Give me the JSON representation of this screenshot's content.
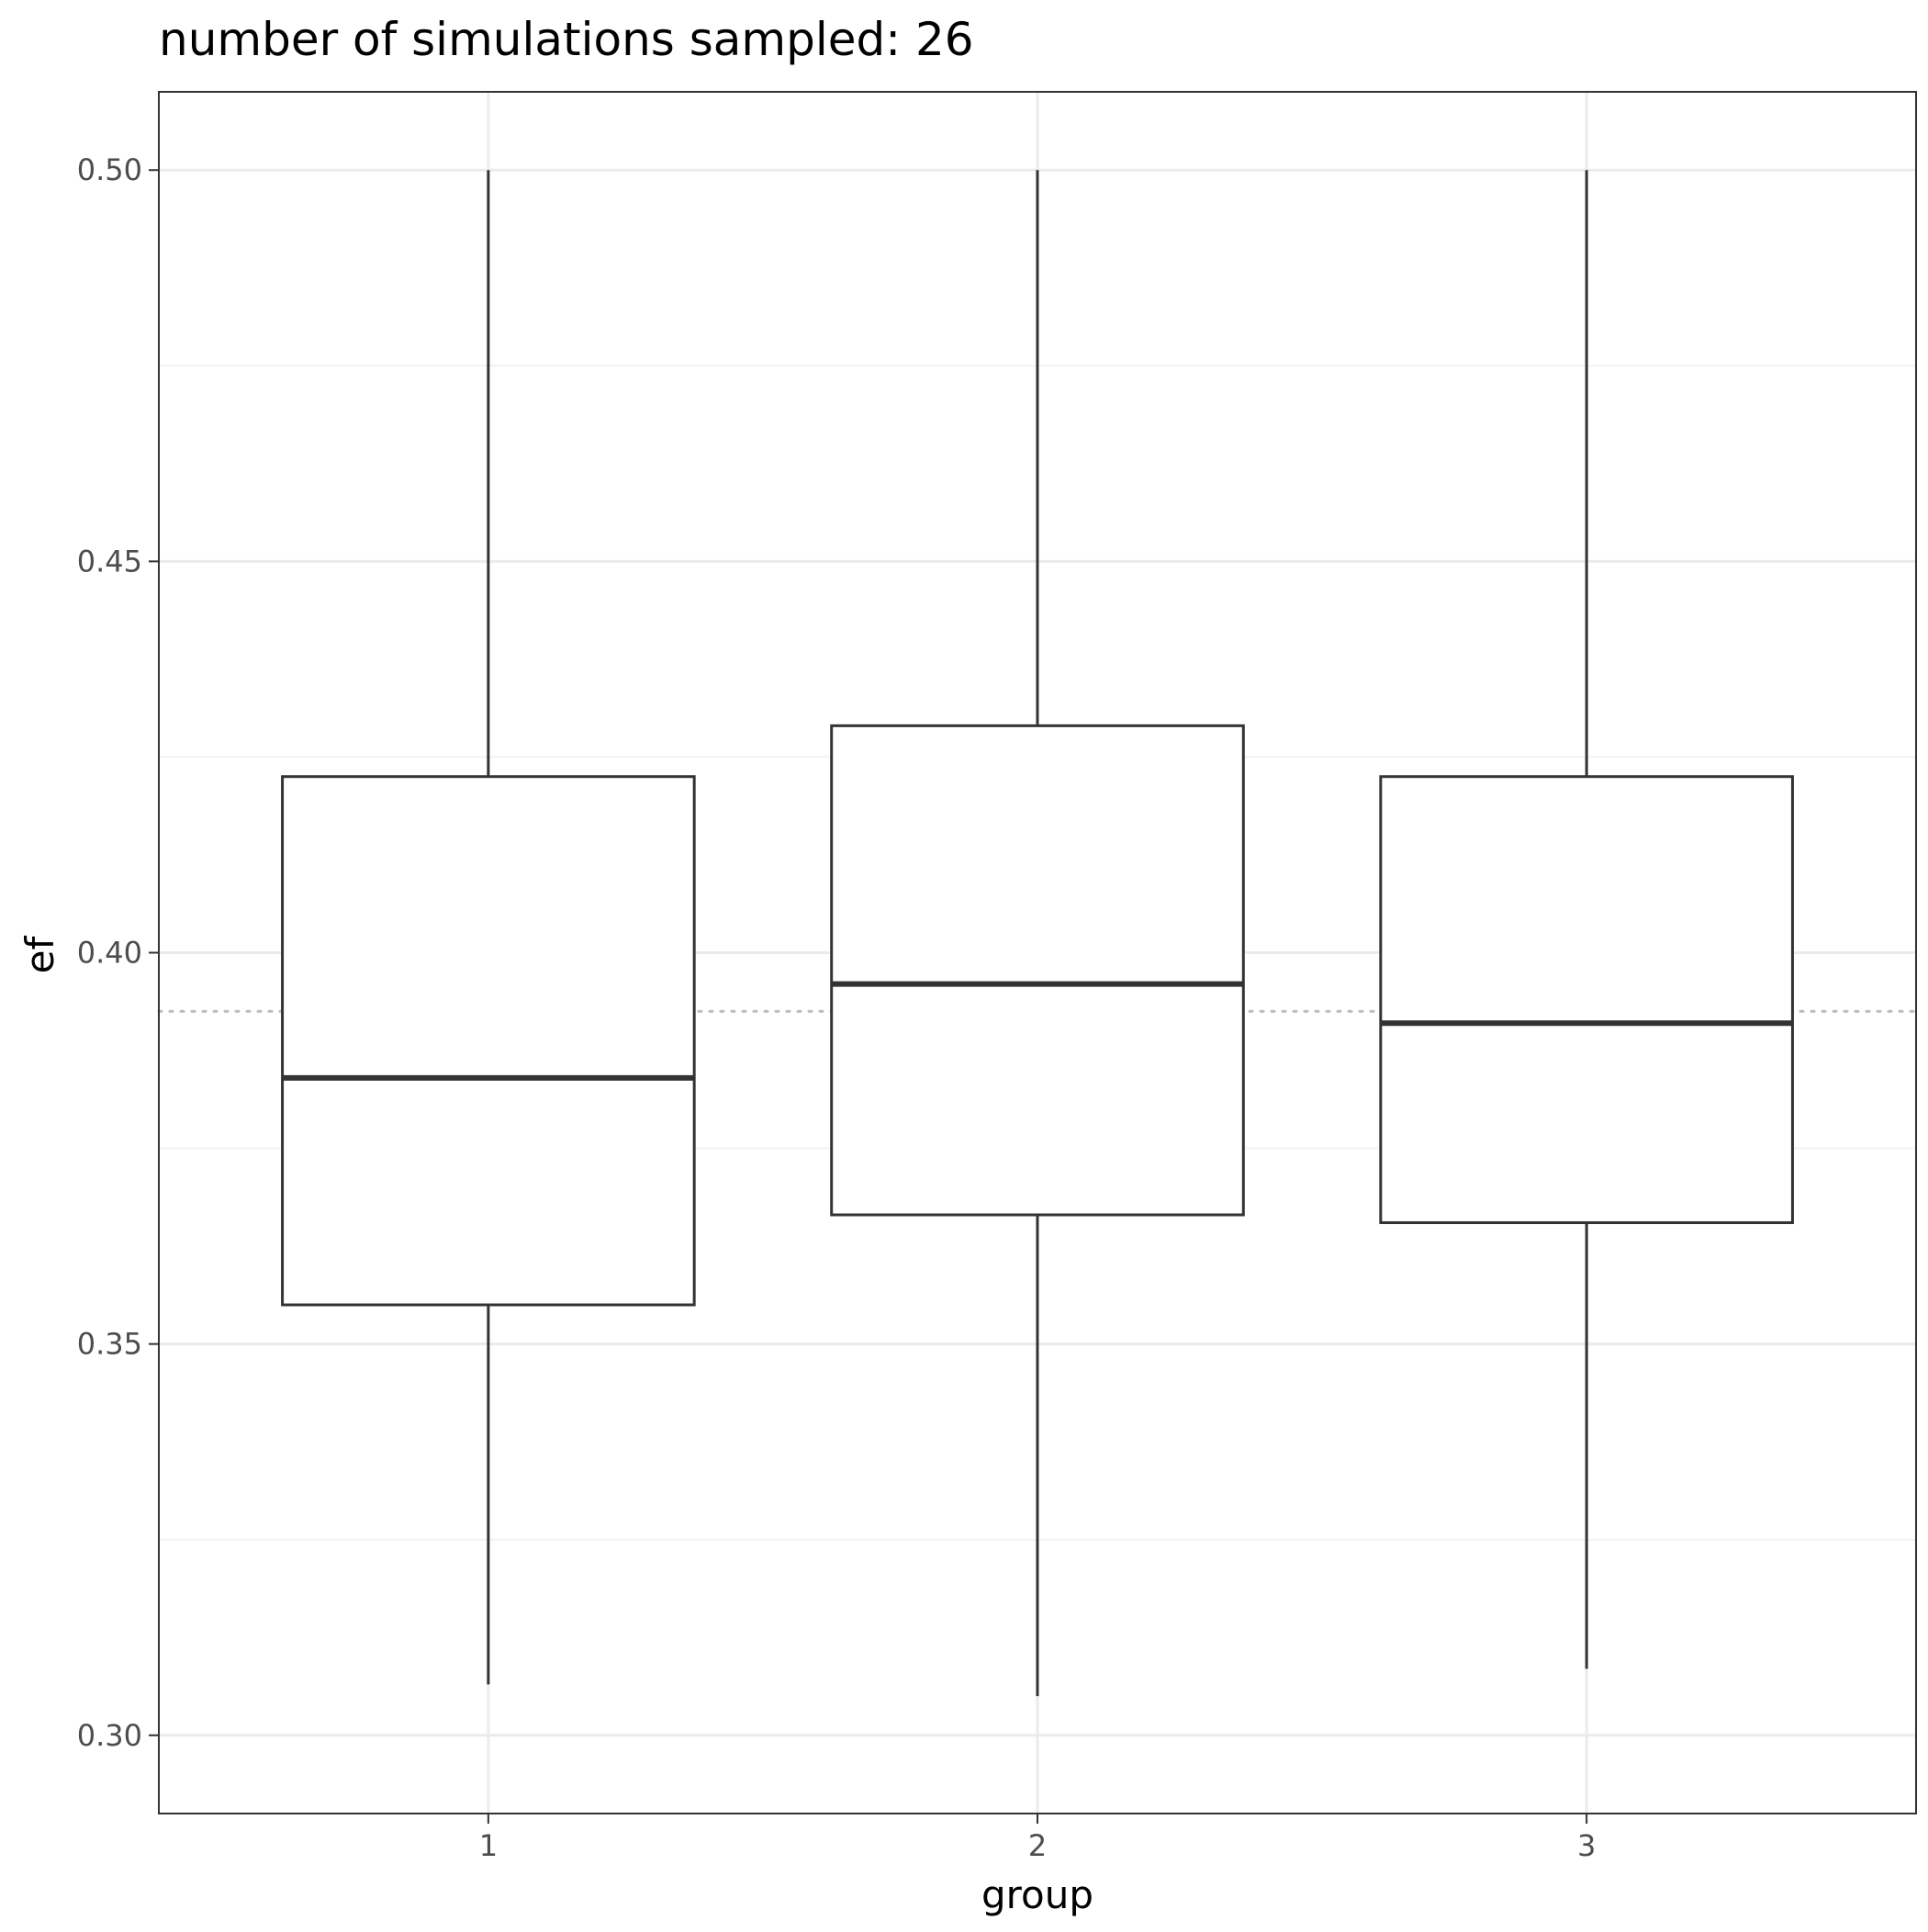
{
  "chart_data": {
    "type": "boxplot",
    "title": "number of simulations sampled: 26",
    "xlabel": "group",
    "ylabel": "ef",
    "categories": [
      "1",
      "2",
      "3"
    ],
    "boxes": [
      {
        "category": "1",
        "whisker_low": 0.3065,
        "q1": 0.355,
        "median": 0.384,
        "q3": 0.4225,
        "whisker_high": 0.5
      },
      {
        "category": "2",
        "whisker_low": 0.305,
        "q1": 0.3665,
        "median": 0.396,
        "q3": 0.429,
        "whisker_high": 0.5
      },
      {
        "category": "3",
        "whisker_low": 0.3085,
        "q1": 0.3655,
        "median": 0.391,
        "q3": 0.4225,
        "whisker_high": 0.5
      }
    ],
    "reference_line": {
      "y": 0.3925,
      "style": "dotted",
      "color": "#bdbdbd"
    },
    "ylim": [
      0.29,
      0.51
    ],
    "y_ticks": [
      0.3,
      0.35,
      0.4,
      0.45,
      0.5
    ],
    "y_tick_labels": [
      "0.30",
      "0.35",
      "0.40",
      "0.45",
      "0.50"
    ],
    "y_minor_ticks": [
      0.325,
      0.375,
      0.425,
      0.475
    ],
    "grid": true,
    "legend": "none",
    "colors": {
      "box_stroke": "#333333",
      "grid_major": "#ebebeb",
      "grid_minor": "#f2f2f2",
      "panel_border": "#333333",
      "tick_text": "#4d4d4d"
    }
  }
}
